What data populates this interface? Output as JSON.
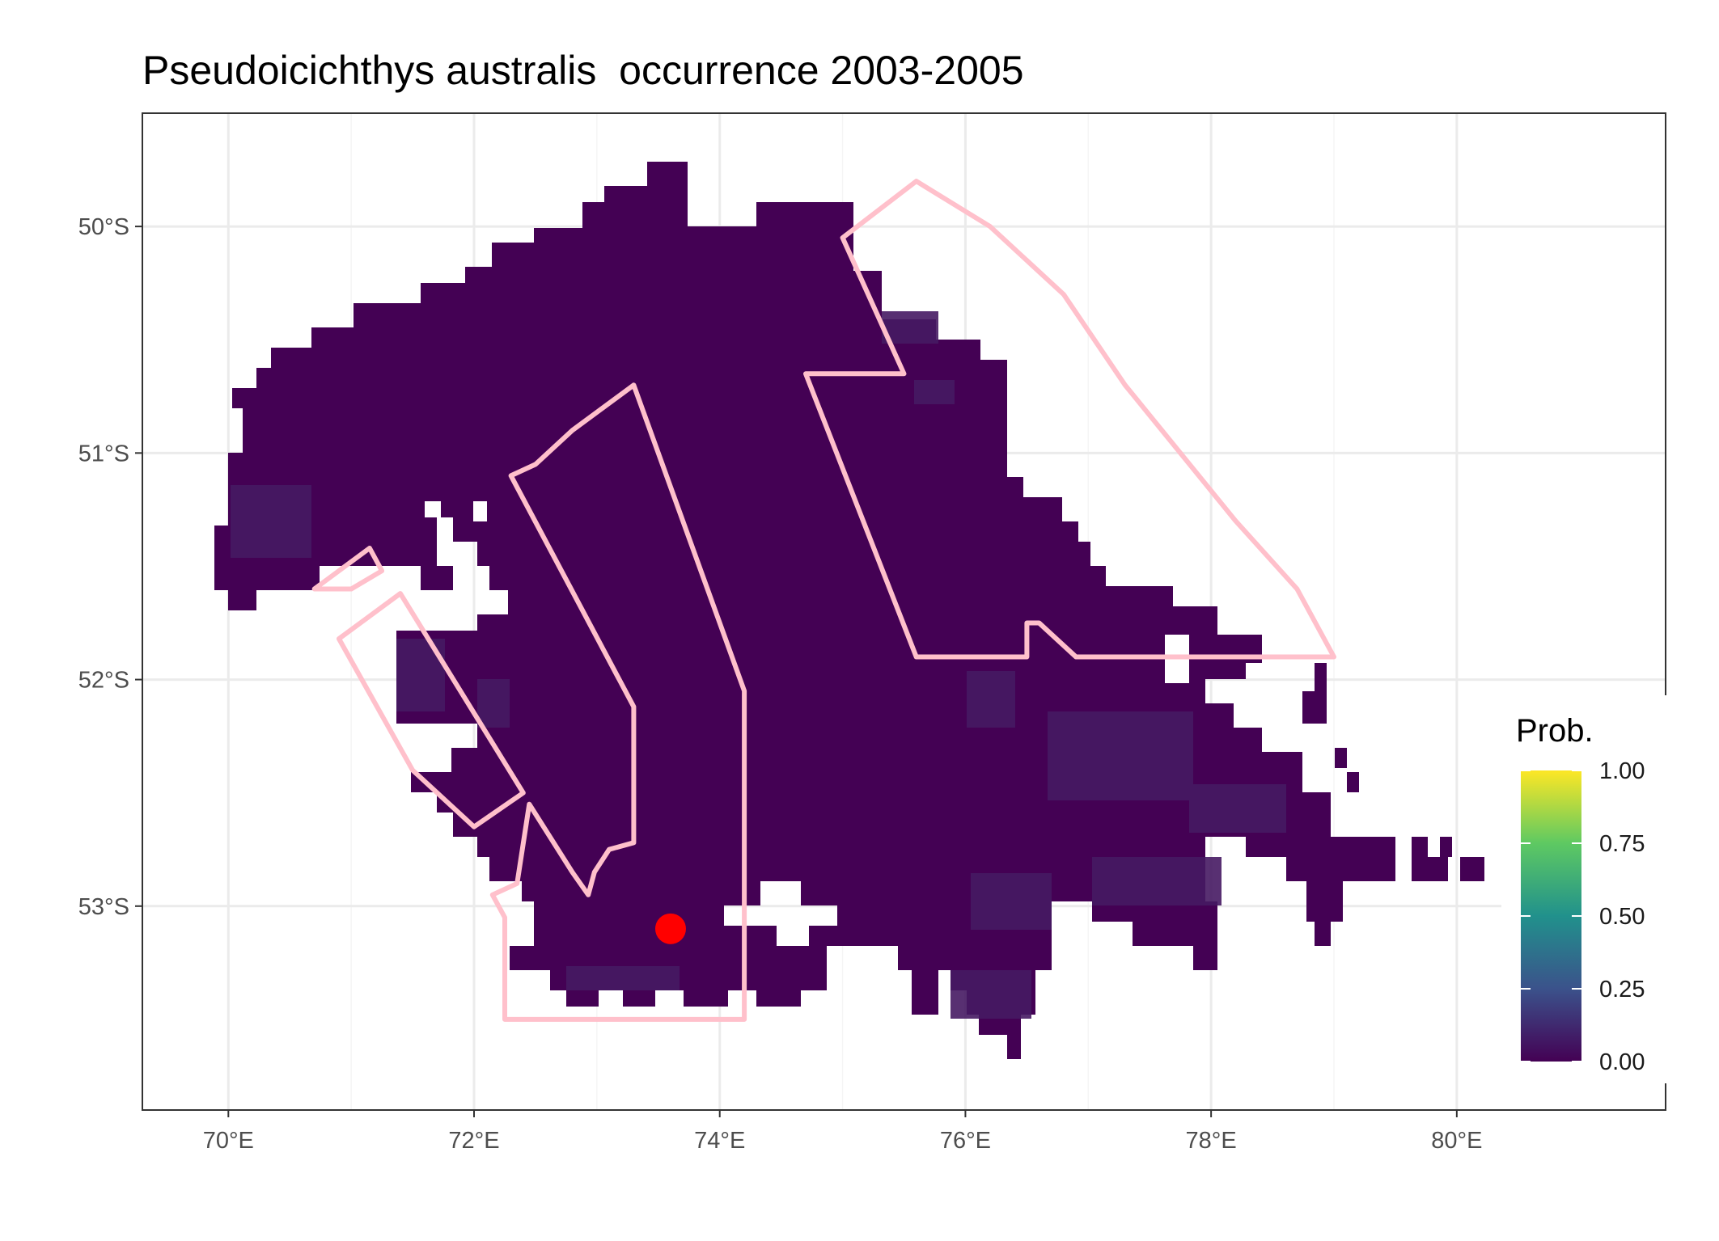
{
  "title": "Pseudoicichthys australis  occurrence 2003-2005",
  "legend": {
    "title": "Prob.",
    "ticks": [
      "1.00",
      "0.75",
      "0.50",
      "0.25",
      "0.00"
    ],
    "colors": [
      "#fde725",
      "#5ec962",
      "#21918c",
      "#3b528b",
      "#440154"
    ]
  },
  "axes": {
    "x_ticks": [
      "70°E",
      "72°E",
      "74°E",
      "76°E",
      "78°E",
      "80°E"
    ],
    "y_ticks": [
      "50°S",
      "51°S",
      "52°S",
      "53°S"
    ],
    "x_values": [
      70,
      72,
      74,
      76,
      78,
      80
    ],
    "y_values": [
      -50,
      -51,
      -52,
      -53
    ],
    "xlim": [
      69.3,
      81.7
    ],
    "ylim": [
      -53.9,
      -49.5
    ]
  },
  "colors": {
    "raster": "#440154",
    "raster_light": "#46175f",
    "polygon_outline": "#ffc0cb",
    "point": "#ff0000",
    "grid": "#ebebeb",
    "panel_border": "#333333"
  },
  "map_data": {
    "occurrence_point": {
      "lon": 73.6,
      "lat": -53.1
    },
    "management_areas": [
      {
        "name": "area-1",
        "coords": [
          [
            70.7,
            -51.6
          ],
          [
            71.15,
            -51.42
          ],
          [
            71.25,
            -51.52
          ],
          [
            71.0,
            -51.6
          ]
        ]
      },
      {
        "name": "area-2",
        "coords": [
          [
            70.9,
            -51.82
          ],
          [
            71.4,
            -51.62
          ],
          [
            72.4,
            -52.5
          ],
          [
            72.0,
            -52.65
          ],
          [
            71.5,
            -52.4
          ]
        ]
      },
      {
        "name": "area-3",
        "coords": [
          [
            72.3,
            -51.1
          ],
          [
            72.5,
            -51.05
          ],
          [
            72.8,
            -50.9
          ],
          [
            73.3,
            -50.7
          ],
          [
            74.2,
            -52.05
          ],
          [
            74.2,
            -53.5
          ],
          [
            72.25,
            -53.5
          ],
          [
            72.25,
            -53.05
          ],
          [
            72.15,
            -52.95
          ],
          [
            72.35,
            -52.9
          ],
          [
            72.45,
            -52.55
          ],
          [
            72.8,
            -52.85
          ],
          [
            72.93,
            -52.95
          ],
          [
            72.98,
            -52.85
          ],
          [
            73.1,
            -52.75
          ],
          [
            73.3,
            -52.72
          ],
          [
            73.3,
            -52.12
          ],
          [
            72.3,
            -51.1
          ]
        ]
      },
      {
        "name": "area-4",
        "coords": [
          [
            74.7,
            -50.65
          ],
          [
            75.5,
            -50.65
          ],
          [
            75.0,
            -50.05
          ],
          [
            75.6,
            -49.8
          ],
          [
            76.2,
            -50.0
          ],
          [
            76.8,
            -50.3
          ],
          [
            77.3,
            -50.7
          ],
          [
            78.2,
            -51.3
          ],
          [
            78.7,
            -51.6
          ],
          [
            79.0,
            -51.9
          ],
          [
            76.9,
            -51.9
          ],
          [
            76.6,
            -51.75
          ],
          [
            76.5,
            -51.75
          ],
          [
            76.5,
            -51.9
          ],
          [
            75.6,
            -51.9
          ],
          [
            74.7,
            -50.65
          ]
        ]
      }
    ]
  }
}
